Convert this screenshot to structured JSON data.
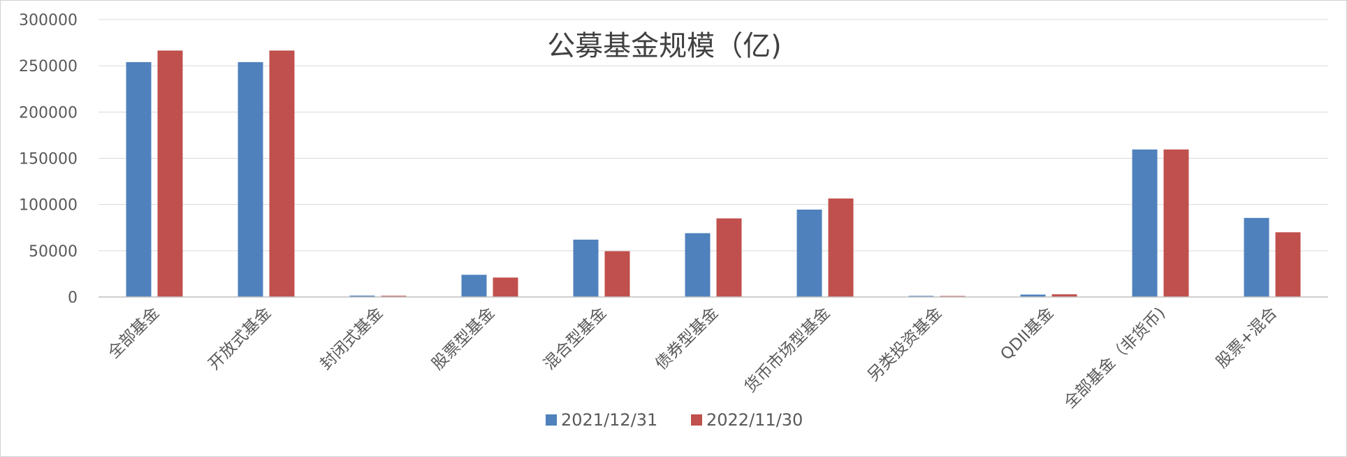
{
  "chart_data": {
    "type": "bar",
    "title": "公募基金规模（亿)",
    "xlabel": "",
    "ylabel": "",
    "ylim": [
      0,
      300000
    ],
    "yticks": [
      "0",
      "50000",
      "100000",
      "150000",
      "200000",
      "250000",
      "300000"
    ],
    "grid": true,
    "legend_position": "bottom",
    "categories": [
      "全部基金",
      "开放式基金",
      "封闭式基金",
      "股票型基金",
      "混合型基金",
      "债券型基金",
      "货币市场型基金",
      "另类投资基金",
      "QDII基金",
      "全部基金（非货币)",
      "股票+混合"
    ],
    "series": [
      {
        "name": "2021/12/31",
        "color": "#4F81BD",
        "values": [
          254000,
          254000,
          1500,
          24000,
          62000,
          69000,
          94500,
          1200,
          2600,
          159500,
          85500
        ]
      },
      {
        "name": "2022/11/30",
        "color": "#C0504D",
        "values": [
          266500,
          266500,
          1300,
          21000,
          49500,
          85000,
          106500,
          1100,
          2900,
          159500,
          70000
        ]
      }
    ]
  }
}
